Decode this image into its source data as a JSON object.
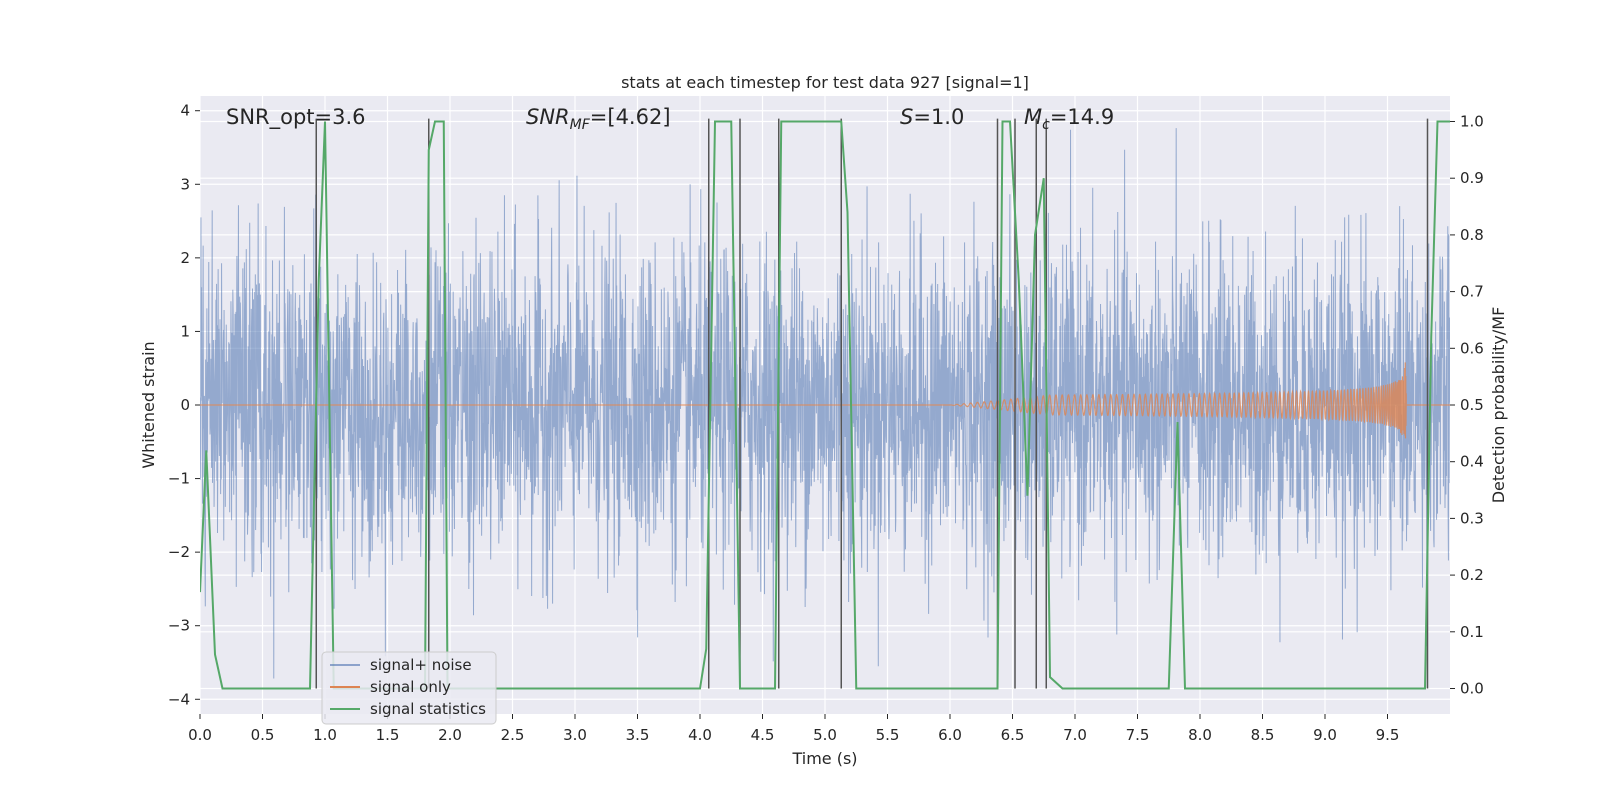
{
  "chart_data": {
    "type": "line",
    "title": "stats at each timestep for test data 927 [signal=1]",
    "xlabel": "Time (s)",
    "ylabel": "Whitened strain",
    "y2label": "Detection probability/MF",
    "xlim": [
      0,
      10
    ],
    "ylim": [
      -4.2,
      4.2
    ],
    "y2lim": [
      -0.045,
      1.045
    ],
    "x_ticks": [
      0.0,
      0.5,
      1.0,
      1.5,
      2.0,
      2.5,
      3.0,
      3.5,
      4.0,
      4.5,
      5.0,
      5.5,
      6.0,
      6.5,
      7.0,
      7.5,
      8.0,
      8.5,
      9.0,
      9.5
    ],
    "x_tick_labels": [
      "0.0",
      "0.5",
      "1.0",
      "1.5",
      "2.0",
      "2.5",
      "3.0",
      "3.5",
      "4.0",
      "4.5",
      "5.0",
      "5.5",
      "6.0",
      "6.5",
      "7.0",
      "7.5",
      "8.0",
      "8.5",
      "9.0",
      "9.5"
    ],
    "y_ticks": [
      -4,
      -3,
      -2,
      -1,
      0,
      1,
      2,
      3,
      4
    ],
    "y_tick_labels": [
      "−4",
      "−3",
      "−2",
      "−1",
      "0",
      "1",
      "2",
      "3",
      "4"
    ],
    "y2_ticks": [
      0.0,
      0.1,
      0.2,
      0.3,
      0.4,
      0.5,
      0.6,
      0.7,
      0.8,
      0.9,
      1.0
    ],
    "y2_tick_labels": [
      "0.0",
      "0.1",
      "0.2",
      "0.3",
      "0.4",
      "0.5",
      "0.6",
      "0.7",
      "0.8",
      "0.9",
      "1.0"
    ],
    "grid": true,
    "legend_position": "lower-left",
    "annotations": {
      "snr_opt": "SNR_opt=3.6",
      "snr_mf": "SNR",
      "snr_mf_sub": "MF",
      "snr_mf_value": "=[4.62]",
      "s_label": "S",
      "s_value": "=1.0",
      "mc_label": "M",
      "mc_sub": "c",
      "mc_value": "=14.9"
    },
    "series": [
      {
        "name": "signal+ noise",
        "color": "#4c72b0",
        "axis": "left",
        "noise_envelope": {
          "t_start": 0.0,
          "t_end": 10.0,
          "rms": 1.05,
          "max_abs": 3.85
        }
      },
      {
        "name": "signal only",
        "color": "#dd8452",
        "axis": "left",
        "chirp": {
          "t_start": 6.0,
          "t_merge": 9.65,
          "peak_amplitude": 0.7
        }
      },
      {
        "name": "signal statistics",
        "color": "#55a868",
        "axis": "right",
        "x": [
          0.0,
          0.05,
          0.12,
          0.18,
          0.5,
          0.88,
          0.95,
          1.0,
          1.07,
          1.2,
          1.5,
          1.8,
          1.83,
          1.88,
          1.95,
          1.98,
          2.2,
          3.0,
          3.8,
          4.0,
          4.05,
          4.12,
          4.25,
          4.32,
          4.38,
          4.6,
          4.65,
          4.75,
          5.0,
          5.13,
          5.18,
          5.25,
          5.8,
          6.2,
          6.38,
          6.42,
          6.48,
          6.55,
          6.62,
          6.68,
          6.75,
          6.8,
          6.9,
          7.3,
          7.75,
          7.82,
          7.88,
          8.5,
          9.2,
          9.8,
          9.85,
          9.9,
          10.0
        ],
        "y": [
          0.17,
          0.42,
          0.06,
          0.0,
          0.0,
          0.0,
          0.72,
          1.0,
          0.0,
          0.0,
          0.0,
          0.0,
          0.95,
          1.0,
          1.0,
          0.0,
          0.0,
          0.0,
          0.0,
          0.0,
          0.07,
          1.0,
          1.0,
          0.0,
          0.0,
          0.0,
          1.0,
          1.0,
          1.0,
          1.0,
          0.84,
          0.0,
          0.0,
          0.0,
          0.0,
          1.0,
          1.0,
          0.72,
          0.34,
          0.8,
          0.9,
          0.02,
          0.0,
          0.0,
          0.0,
          0.47,
          0.0,
          0.0,
          0.0,
          0.0,
          0.62,
          1.0,
          1.0
        ]
      }
    ],
    "vertical_markers": [
      0.93,
      1.83,
      4.07,
      4.32,
      4.63,
      5.13,
      6.38,
      6.52,
      6.69,
      6.77,
      9.82
    ]
  }
}
